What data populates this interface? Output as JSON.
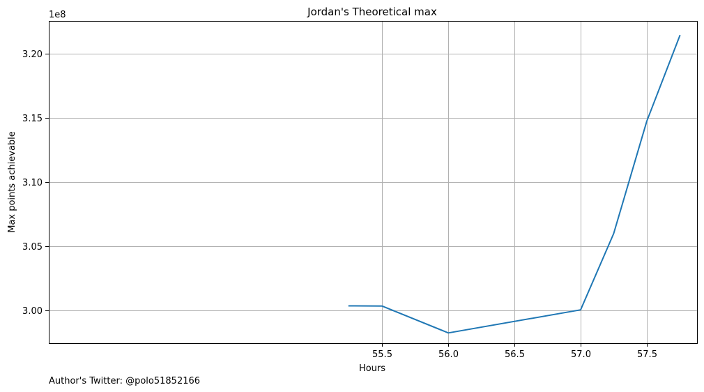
{
  "chart_data": {
    "type": "line",
    "title": "Jordan's Theoretical max",
    "xlabel": "Hours",
    "ylabel": "Max points achievable",
    "y_offset_label": "1e8",
    "y_scale_factor": 100000000,
    "x": [
      55.25,
      55.5,
      56.0,
      57.0,
      57.25,
      57.5,
      57.75
    ],
    "series": [
      {
        "values": [
          300370000,
          300350000,
          298260000,
          300060000,
          306000000,
          314760000,
          321430000
        ],
        "color": "#1f77b4"
      }
    ],
    "xlim": [
      52.98,
      57.88
    ],
    "ylim": [
      297.46,
      322.58
    ],
    "xticks": [
      55.5,
      56.0,
      56.5,
      57.0,
      57.5
    ],
    "xtick_labels": [
      "55.5",
      "56.0",
      "56.5",
      "57.0",
      "57.5"
    ],
    "yticks": [
      3.0,
      3.05,
      3.1,
      3.15,
      3.2
    ],
    "ytick_labels": [
      "3.00",
      "3.05",
      "3.10",
      "3.15",
      "3.20"
    ],
    "grid": true,
    "legend": "none"
  },
  "footer": {
    "text": "Author's Twitter: @polo51852166"
  }
}
